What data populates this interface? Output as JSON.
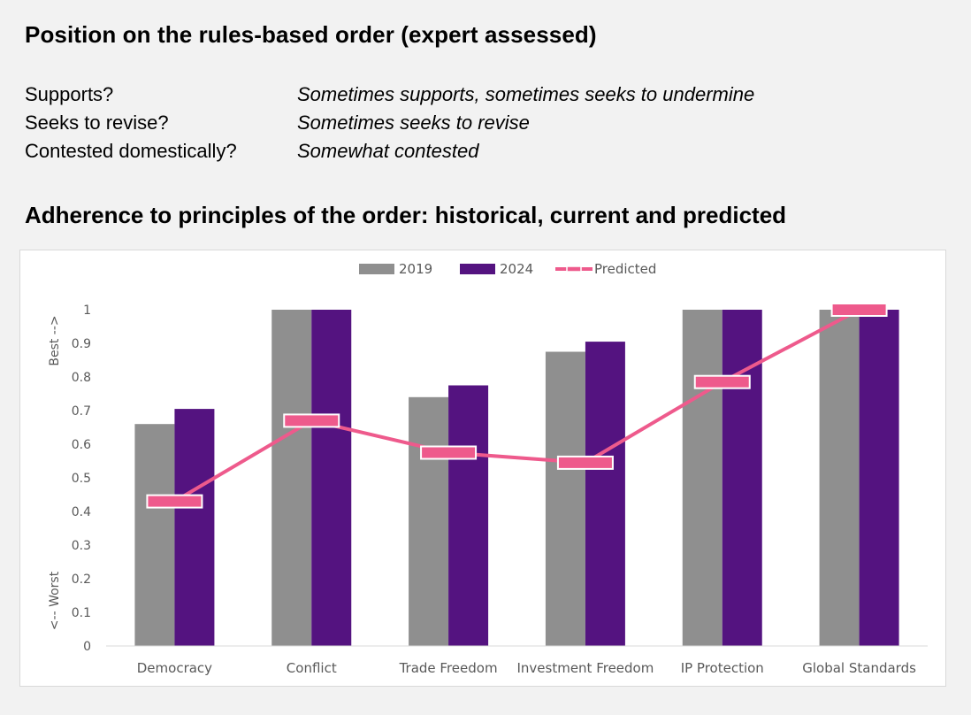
{
  "header": {
    "title": "Position on the rules-based order (expert assessed)"
  },
  "positions": [
    {
      "label": "Supports?",
      "value": "Sometimes supports, sometimes seeks to undermine"
    },
    {
      "label": "Seeks to revise?",
      "value": "Sometimes seeks to revise"
    },
    {
      "label": "Contested domestically?",
      "value": "Somewhat contested"
    }
  ],
  "chart_title": "Adherence to principles of the order: historical, current and predicted",
  "colors": {
    "series_2019": "#8f8f8f",
    "series_2024": "#541380",
    "predicted": "#ee5a8c"
  },
  "chart_data": {
    "type": "bar",
    "title": "",
    "xlabel": "",
    "ylabel_top": "Best -->",
    "ylabel_bottom": "<-- Worst",
    "ylim": [
      0,
      1
    ],
    "yticks": [
      "0",
      "0.1",
      "0.2",
      "0.3",
      "0.4",
      "0.5",
      "0.6",
      "0.7",
      "0.8",
      "0.9",
      "1"
    ],
    "grid": false,
    "legend_position": "top",
    "categories": [
      "Democracy",
      "Conflict",
      "Trade Freedom",
      "Investment Freedom",
      "IP Protection",
      "Global Standards"
    ],
    "series": [
      {
        "name": "2019",
        "type": "bar",
        "values": [
          0.66,
          1.0,
          0.74,
          0.875,
          1.0,
          1.0
        ]
      },
      {
        "name": "2024",
        "type": "bar",
        "values": [
          0.705,
          1.0,
          0.775,
          0.905,
          1.0,
          1.0
        ]
      },
      {
        "name": "Predicted",
        "type": "line",
        "values": [
          0.43,
          0.67,
          0.575,
          0.545,
          0.785,
          1.0
        ]
      }
    ]
  }
}
